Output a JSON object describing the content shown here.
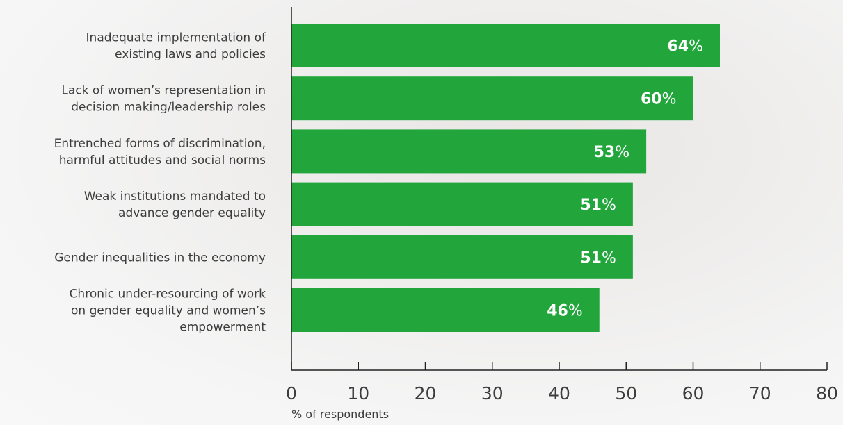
{
  "chart_data": {
    "type": "bar",
    "orientation": "horizontal",
    "categories": [
      [
        "Inadequate implementation of",
        "existing laws and policies"
      ],
      [
        "Lack of women’s representation in",
        "decision making/leadership roles"
      ],
      [
        "Entrenched forms of discrimination,",
        "harmful attitudes and social norms"
      ],
      [
        "Weak institutions mandated to",
        "advance gender equality"
      ],
      [
        "Gender inequalities in the economy"
      ],
      [
        "Chronic under-resourcing of work",
        "on gender equality and women’s",
        "empowerment"
      ]
    ],
    "values": [
      64,
      60,
      53,
      51,
      51,
      46
    ],
    "value_suffix": "%",
    "xlabel": "% of respondents",
    "xlim": [
      0,
      80
    ],
    "xticks": [
      0,
      10,
      20,
      30,
      40,
      50,
      60,
      70,
      80
    ],
    "grid": false,
    "bar_color": "#22a63c",
    "label_color": "#ffffff"
  }
}
